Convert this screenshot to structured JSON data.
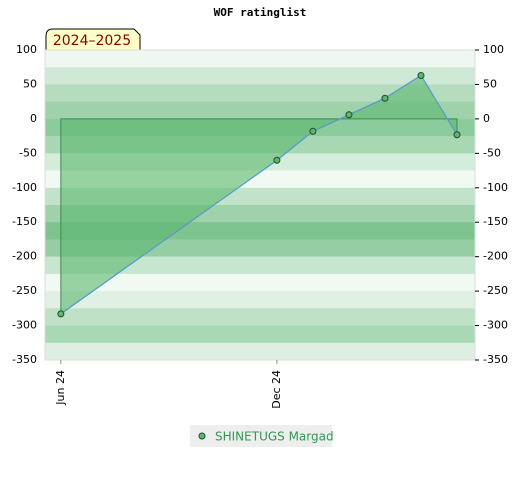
{
  "chart_data": {
    "type": "line",
    "title": "WOF ratinglist",
    "badge": "2024–2025",
    "x": [
      0,
      6,
      7,
      8,
      9,
      10,
      11
    ],
    "xlim": [
      -0.44,
      11.5
    ],
    "xticks": [
      {
        "value": 0,
        "label": "Jun 24"
      },
      {
        "value": 6,
        "label": "Dec 24"
      }
    ],
    "series": [
      {
        "name": "SHINETUGS Margad",
        "color": "#5b9bd5",
        "fill": "#5cb86e",
        "values": [
          -283,
          -60,
          -18,
          6,
          30,
          63,
          -23
        ]
      }
    ],
    "ylim": [
      -350,
      100
    ],
    "yticks": [
      -350,
      -300,
      -250,
      -200,
      -150,
      -100,
      -50,
      0,
      50,
      100
    ],
    "grid": true
  }
}
